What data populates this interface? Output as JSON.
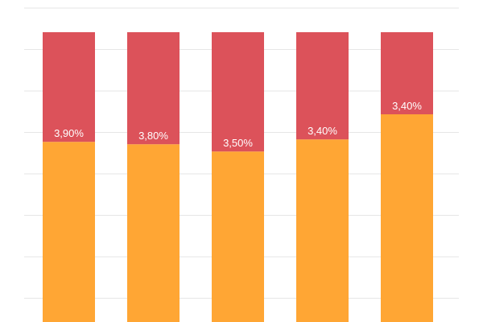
{
  "chart_data": {
    "type": "bar",
    "stacked": true,
    "categories": [
      "",
      "",
      "",
      "",
      ""
    ],
    "series": [
      {
        "values": [
          37.3,
          36.8,
          35.3,
          37.8,
          43.0
        ],
        "color": "#ffa634"
      },
      {
        "values": [
          22.7,
          23.2,
          24.7,
          22.2,
          17.0
        ],
        "color": "#dc525a"
      }
    ],
    "data_labels": [
      "3,90%",
      "3,80%",
      "3,50%",
      "3,40%",
      "3,40%"
    ],
    "grid": true,
    "legend": "none",
    "title": "",
    "xlabel": "",
    "ylabel": ""
  }
}
